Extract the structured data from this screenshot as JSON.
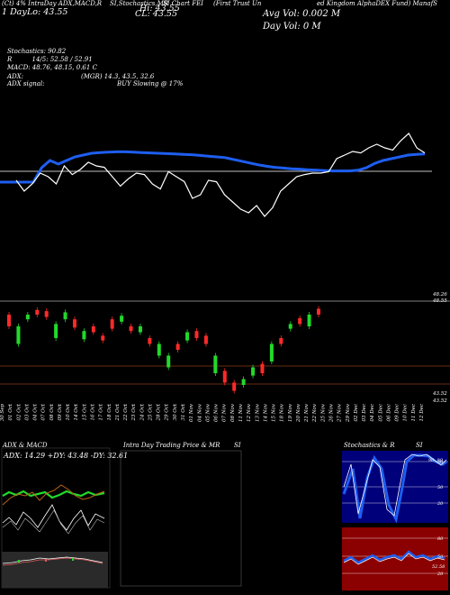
{
  "header": {
    "top_left": "(Ct) 4% IntraDay ADX,MACD,R",
    "top_mid1": "SI,Stochastics,MR",
    "top_mid2": "SI Chart FEI",
    "top_mid3": "(First Trust Un",
    "top_right": "ed Kingdom AlphaDEX Fund) ManafS",
    "op_label": "OP: 43.55",
    "hi_label": "Hi: 43.55",
    "day_label": "1 Day",
    "lo_label": "Lo: 43.55",
    "cl_label": "CL: 43.55",
    "avg_vol": "Avg Vol: 0.002  M",
    "day_vol": "Day Vol: 0  M"
  },
  "indicators": {
    "stochastics": "Stochastics: 90.82",
    "r_line": "R          14/5: 52.58 / 52.91",
    "macd": "MACD: 48.76, 48.15, 0.61 C",
    "adx": "ADX:",
    "adx_mgr": "(MGR) 14.3, 43.5, 32.6",
    "adx_signal": "ADX  signal:",
    "adx_buy": "BUY Slowing @ 17%"
  },
  "price_labels": {
    "top_a": "48.26",
    "top_b": "48.55",
    "bot_a": "43.52",
    "bot_b": "43.52"
  },
  "dates": [
    "30 Sep",
    "01 Oct",
    "02 Oct",
    "03 Oct",
    "04 Oct",
    "07 Oct",
    "08 Oct",
    "09 Oct",
    "10 Oct",
    "14 Oct",
    "15 Oct",
    "16 Oct",
    "17 Oct",
    "18 Oct",
    "21 Oct",
    "22 Oct",
    "23 Oct",
    "24 Oct",
    "25 Oct",
    "28 Oct",
    "29 Oct",
    "30 Oct",
    "31 Oct",
    "01 Nov",
    "04 Nov",
    "05 Nov",
    "06 Nov",
    "07 Nov",
    "08 Nov",
    "11 Nov",
    "12 Nov",
    "13 Nov",
    "14 Nov",
    "15 Nov",
    "18 Nov",
    "19 Nov",
    "20 Nov",
    "21 Nov",
    "22 Nov",
    "25 Nov",
    "26 Nov",
    "27 Nov",
    "29 Nov",
    "02 Dec",
    "03 Dec",
    "04 Dec",
    "05 Dec",
    "06 Dec",
    "09 Dec",
    "10 Dec",
    "11 Dec",
    "12 Dec"
  ],
  "panels": {
    "adx_title": "ADX  & MACD",
    "adx_values": "ADX: 14.29  +DY: 43.48  -DY: 32.61",
    "intraday_title": "Intra Day Trading Price  & MR",
    "intraday_si": "SI",
    "stoch_title": "Stochastics & R",
    "stoch_si": "SI",
    "stoch_levels": [
      "80",
      "50",
      "20"
    ],
    "stoch_value": "90, 90",
    "rsi_levels": [
      "80",
      "50",
      "20"
    ],
    "rsi_value": "52.58"
  },
  "chart_data": {
    "type": "line",
    "title": "",
    "series": [
      {
        "name": "",
        "values": [
          0.0,
          0.0,
          0.0,
          0.0,
          0.0,
          0.4,
          0.6,
          0.5,
          0.6,
          0.7,
          0.75,
          0.8,
          0.82,
          0.83,
          0.84,
          0.84,
          0.83,
          0.82,
          0.81,
          0.8,
          0.79,
          0.78,
          0.77,
          0.76,
          0.74,
          0.72,
          0.7,
          0.68,
          0.63,
          0.58,
          0.53,
          0.48,
          0.44,
          0.41,
          0.39,
          0.37,
          0.36,
          0.34,
          0.33,
          0.32,
          0.31,
          0.31,
          0.31,
          0.33,
          0.4,
          0.52,
          0.6,
          0.65,
          0.7,
          0.75,
          0.77,
          0.78
        ]
      },
      {
        "name": "",
        "values": [
          0.5,
          0.35,
          0.45,
          0.6,
          0.55,
          0.45,
          0.7,
          0.58,
          0.65,
          0.75,
          0.7,
          0.68,
          0.55,
          0.42,
          0.52,
          0.6,
          0.58,
          0.45,
          0.38,
          0.62,
          0.55,
          0.48,
          0.25,
          0.3,
          0.5,
          0.48,
          0.3,
          0.2,
          0.1,
          0.05,
          0.15,
          0.0,
          0.12,
          0.35,
          0.45,
          0.55,
          0.58,
          0.6,
          0.6,
          0.62,
          0.8,
          0.85,
          0.9,
          0.88,
          0.95,
          1.0,
          0.95,
          0.92,
          1.05,
          1.15,
          0.95,
          0.88
        ]
      }
    ],
    "candles": [
      {
        "o": 0.6,
        "c": 0.7,
        "up": false
      },
      {
        "o": 0.45,
        "c": 0.6,
        "up": true
      },
      {
        "o": 0.66,
        "c": 0.7,
        "up": true
      },
      {
        "o": 0.7,
        "c": 0.74,
        "up": false
      },
      {
        "o": 0.68,
        "c": 0.73,
        "up": false
      },
      {
        "o": 0.5,
        "c": 0.62,
        "up": true
      },
      {
        "o": 0.66,
        "c": 0.72,
        "up": true
      },
      {
        "o": 0.59,
        "c": 0.66,
        "up": false
      },
      {
        "o": 0.49,
        "c": 0.56,
        "up": true
      },
      {
        "o": 0.55,
        "c": 0.6,
        "up": false
      },
      {
        "o": 0.48,
        "c": 0.52,
        "up": false
      },
      {
        "o": 0.58,
        "c": 0.66,
        "up": false
      },
      {
        "o": 0.64,
        "c": 0.69,
        "up": true
      },
      {
        "o": 0.56,
        "c": 0.6,
        "up": false
      },
      {
        "o": 0.55,
        "c": 0.6,
        "up": true
      },
      {
        "o": 0.45,
        "c": 0.5,
        "up": false
      },
      {
        "o": 0.35,
        "c": 0.45,
        "up": true
      },
      {
        "o": 0.25,
        "c": 0.35,
        "up": true
      },
      {
        "o": 0.4,
        "c": 0.45,
        "up": false
      },
      {
        "o": 0.48,
        "c": 0.55,
        "up": true
      },
      {
        "o": 0.5,
        "c": 0.56,
        "up": false
      },
      {
        "o": 0.45,
        "c": 0.52,
        "up": false
      },
      {
        "o": 0.2,
        "c": 0.35,
        "up": true
      },
      {
        "o": 0.12,
        "c": 0.22,
        "up": false
      },
      {
        "o": 0.05,
        "c": 0.12,
        "up": false
      },
      {
        "o": 0.1,
        "c": 0.15,
        "up": true
      },
      {
        "o": 0.18,
        "c": 0.25,
        "up": true
      },
      {
        "o": 0.2,
        "c": 0.28,
        "up": false
      },
      {
        "o": 0.3,
        "c": 0.45,
        "up": true
      },
      {
        "o": 0.45,
        "c": 0.5,
        "up": false
      },
      {
        "o": 0.58,
        "c": 0.62,
        "up": true
      },
      {
        "o": 0.62,
        "c": 0.67,
        "up": false
      },
      {
        "o": 0.6,
        "c": 0.7,
        "up": true
      },
      {
        "o": 0.7,
        "c": 0.75,
        "up": false
      }
    ]
  }
}
